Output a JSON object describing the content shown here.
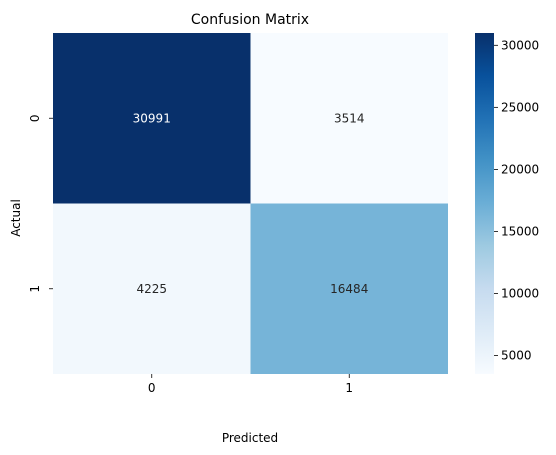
{
  "chart_data": {
    "type": "heatmap",
    "title": "Confusion Matrix",
    "xlabel": "Predicted",
    "ylabel": "Actual",
    "x_categories": [
      "0",
      "1"
    ],
    "y_categories": [
      "0",
      "1"
    ],
    "values": [
      [
        30991,
        3514
      ],
      [
        4225,
        16484
      ]
    ],
    "colormap": "Blues",
    "colorbar": {
      "min": 3514,
      "max": 30991,
      "ticks": [
        5000,
        10000,
        15000,
        20000,
        25000,
        30000
      ],
      "tick_labels": [
        "5000",
        "10000",
        "15000",
        "20000",
        "25000",
        "30000"
      ]
    },
    "grid": false,
    "legend": "none"
  }
}
